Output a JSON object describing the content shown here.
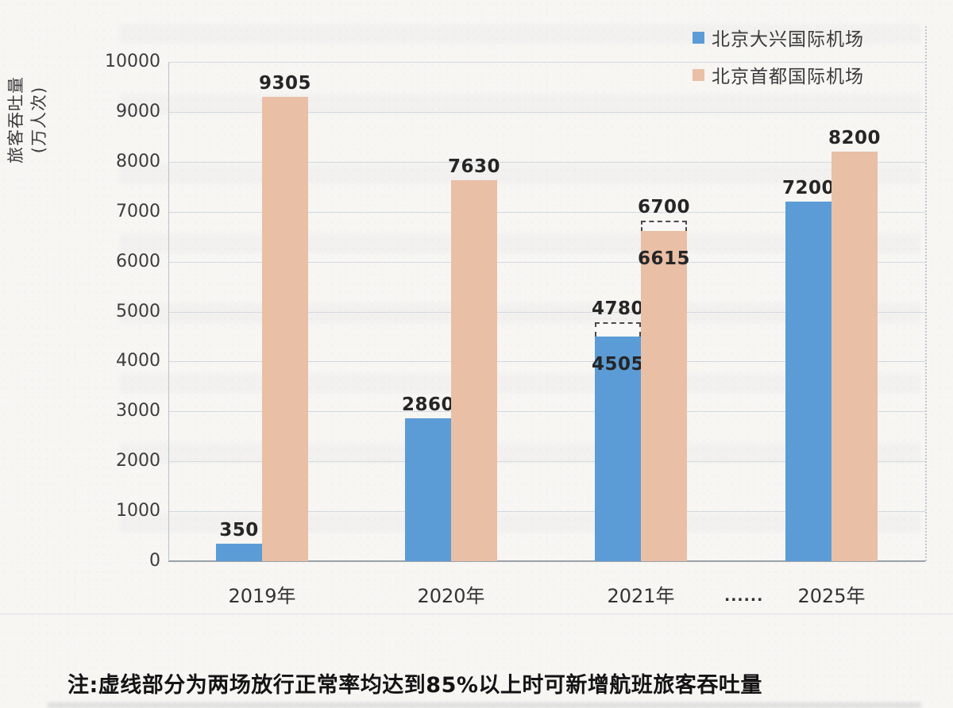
{
  "chart_data": {
    "type": "bar",
    "title": "",
    "ylabel": "旅客吞吐量",
    "ylabel_unit": "(万人次)",
    "ylim": [
      0,
      10000
    ],
    "ytick_step": 1000,
    "yticks": [
      0,
      1000,
      2000,
      3000,
      4000,
      5000,
      6000,
      7000,
      8000,
      9000,
      10000
    ],
    "categories": [
      "2019年",
      "2020年",
      "2021年",
      "2025年"
    ],
    "x_gap_marker": "......",
    "x_gap_marker_position": "between 2021年 and 2025年",
    "grid": true,
    "legend_position": "top-right",
    "series": [
      {
        "name": "北京大兴国际机场",
        "key": "daxing",
        "color": "#5c9cd6",
        "values": [
          350,
          2860,
          4505,
          7200
        ],
        "dashed_extension_values": [
          null,
          null,
          4780,
          null
        ]
      },
      {
        "name": "北京首都国际机场",
        "key": "capital",
        "color": "#e9bfa6",
        "values": [
          9305,
          7630,
          6615,
          8200
        ],
        "dashed_extension_values": [
          null,
          null,
          6700,
          null
        ]
      }
    ],
    "note": "注:虚线部分为两场放行正常率均达到85%以上时可新增航班旅客吞吐量"
  }
}
